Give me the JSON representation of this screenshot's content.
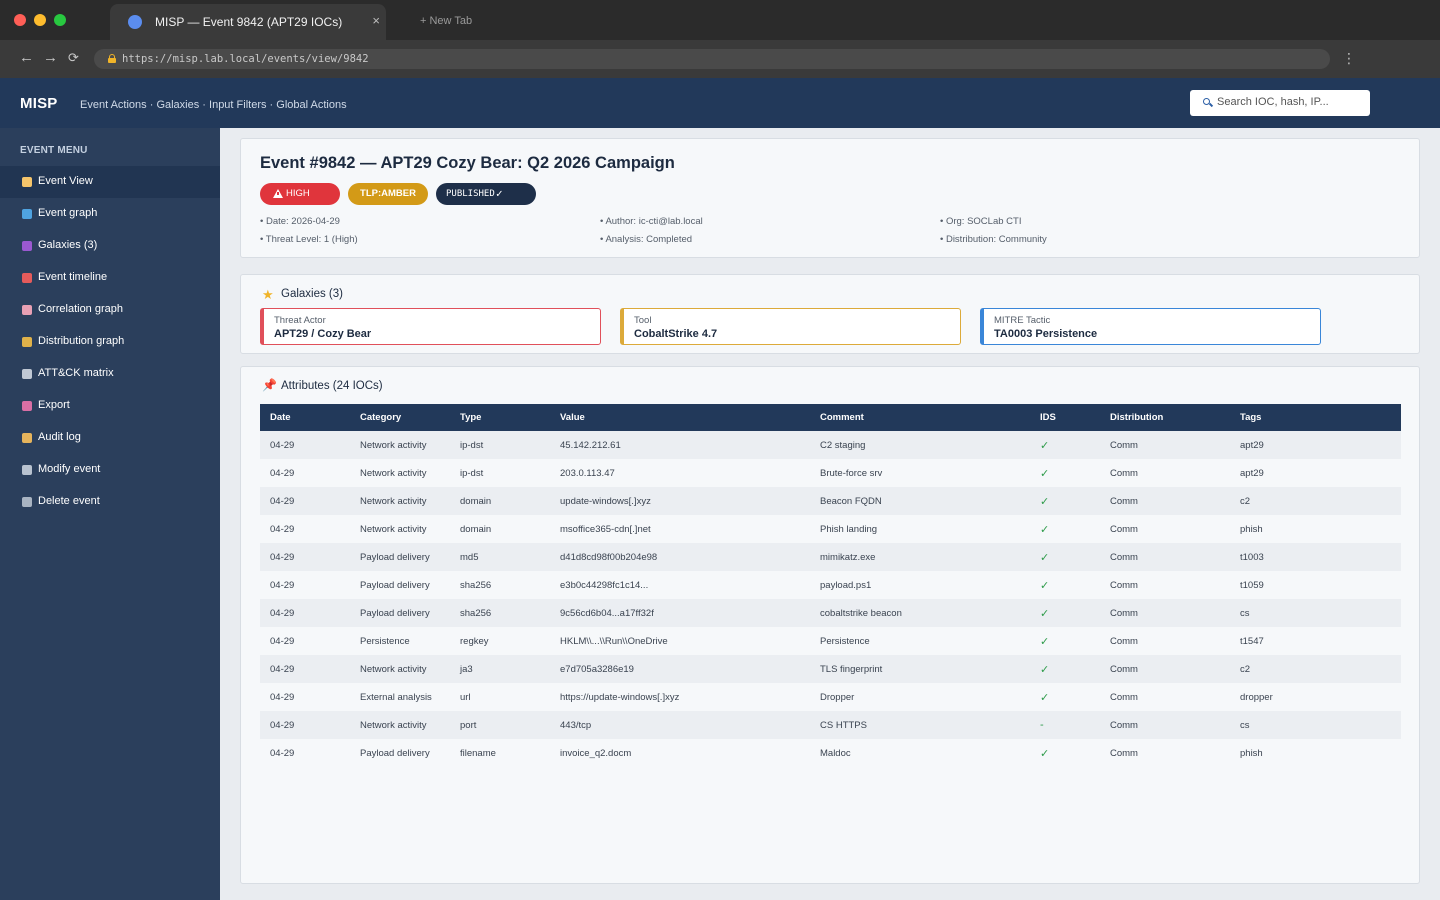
{
  "browser": {
    "tab_title": "MISP — Event 9842 (APT29 IOCs)",
    "tab_close": "×",
    "new_tab": "+ New Tab",
    "url": "https://misp.lab.local/events/view/9842",
    "back": "←",
    "forward": "→",
    "reload": "⟳",
    "menu": "⋮"
  },
  "header": {
    "brand": "MISP",
    "nav": [
      "Event Actions",
      "Galaxies",
      "Input Filters",
      "Global Actions"
    ],
    "nav_separator": " · ",
    "search_placeholder": "Search IOC, hash, IP..."
  },
  "sidebar": {
    "heading": "EVENT MENU",
    "items": [
      {
        "label": "Event View",
        "icon": "document-icon",
        "color": "#f5c56b",
        "active": true
      },
      {
        "label": "Event graph",
        "icon": "globe-icon",
        "color": "#4fa3e0"
      },
      {
        "label": "Galaxies (3)",
        "icon": "galaxy-icon",
        "color": "#9b59d0"
      },
      {
        "label": "Event timeline",
        "icon": "alarm-clock-icon",
        "color": "#e55b5b"
      },
      {
        "label": "Correlation graph",
        "icon": "pin-icon",
        "color": "#e8a0b4"
      },
      {
        "label": "Distribution graph",
        "icon": "bar-chart-icon",
        "color": "#e0b24a"
      },
      {
        "label": "ATT&CK matrix",
        "icon": "sword-icon",
        "color": "#c0c8d4"
      },
      {
        "label": "Export",
        "icon": "inbox-icon",
        "color": "#d96fa5"
      },
      {
        "label": "Audit log",
        "icon": "scroll-icon",
        "color": "#e6b45c"
      },
      {
        "label": "Modify event",
        "icon": "gear-icon",
        "color": "#b8c2cf"
      },
      {
        "label": "Delete event",
        "icon": "trash-icon",
        "color": "#a9b4c2"
      }
    ]
  },
  "event": {
    "title": "Event #9842 — APT29 Cozy Bear: Q2 2026 Campaign",
    "badges": {
      "threat": "HIGH",
      "tlp": "TLP:AMBER",
      "published": "PUBLISHED",
      "published_mark": "✓"
    },
    "meta": {
      "date": "• Date: 2026-04-29",
      "threat_level": "• Threat Level: 1 (High)",
      "author": "• Author: ic-cti@lab.local",
      "analysis": "• Analysis: Completed",
      "org": "• Org: SOCLab CTI",
      "distribution": "• Distribution: Community"
    }
  },
  "galaxies": {
    "title": "Galaxies (3)",
    "cards": [
      {
        "type": "Threat Actor",
        "value": "APT29 / Cozy Bear"
      },
      {
        "type": "Tool",
        "value": "CobaltStrike 4.7"
      },
      {
        "type": "MITRE Tactic",
        "value": "TA0003 Persistence"
      }
    ]
  },
  "attributes": {
    "title": "Attributes (24 IOCs)",
    "columns": [
      "Date",
      "Category",
      "Type",
      "Value",
      "Comment",
      "IDS",
      "Distribution",
      "Tags"
    ],
    "rows": [
      [
        "04-29",
        "Network activity",
        "ip-dst",
        "45.142.212.61",
        "C2 staging",
        "✓",
        "Comm",
        "apt29"
      ],
      [
        "04-29",
        "Network activity",
        "ip-dst",
        "203.0.113.47",
        "Brute-force srv",
        "✓",
        "Comm",
        "apt29"
      ],
      [
        "04-29",
        "Network activity",
        "domain",
        "update-windows[.]xyz",
        "Beacon FQDN",
        "✓",
        "Comm",
        "c2"
      ],
      [
        "04-29",
        "Network activity",
        "domain",
        "msoffice365-cdn[.]net",
        "Phish landing",
        "✓",
        "Comm",
        "phish"
      ],
      [
        "04-29",
        "Payload delivery",
        "md5",
        "d41d8cd98f00b204e98",
        "mimikatz.exe",
        "✓",
        "Comm",
        "t1003"
      ],
      [
        "04-29",
        "Payload delivery",
        "sha256",
        "e3b0c44298fc1c14...",
        "payload.ps1",
        "✓",
        "Comm",
        "t1059"
      ],
      [
        "04-29",
        "Payload delivery",
        "sha256",
        "9c56cd6b04...a17ff32f",
        "cobaltstrike beacon",
        "✓",
        "Comm",
        "cs"
      ],
      [
        "04-29",
        "Persistence",
        "regkey",
        "HKLM\\\\...\\\\Run\\\\OneDrive",
        "Persistence",
        "✓",
        "Comm",
        "t1547"
      ],
      [
        "04-29",
        "Network activity",
        "ja3",
        "e7d705a3286e19",
        "TLS fingerprint",
        "✓",
        "Comm",
        "c2"
      ],
      [
        "04-29",
        "External analysis",
        "url",
        "https://update-windows[.]xyz",
        "Dropper",
        "✓",
        "Comm",
        "dropper"
      ],
      [
        "04-29",
        "Network activity",
        "port",
        "443/tcp",
        "CS HTTPS",
        "-",
        "Comm",
        "cs"
      ],
      [
        "04-29",
        "Payload delivery",
        "filename",
        "invoice_q2.docm",
        "Maldoc",
        "✓",
        "Comm",
        "phish"
      ]
    ]
  }
}
